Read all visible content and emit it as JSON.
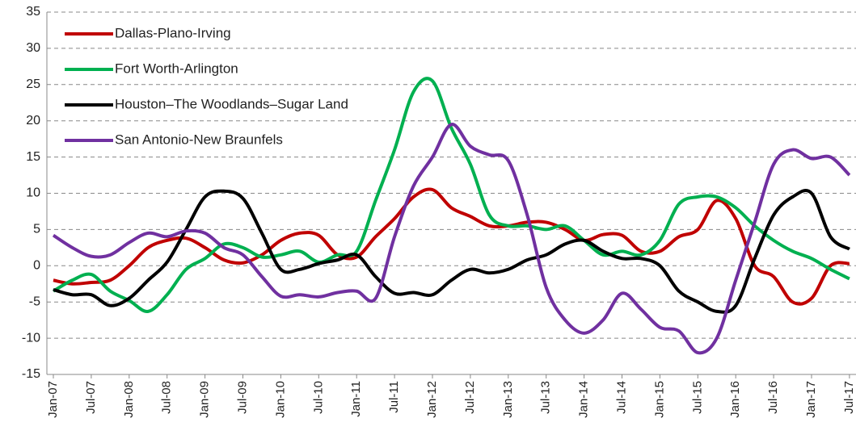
{
  "chart_data": {
    "type": "line",
    "categories": [
      "Jan-07",
      null,
      "Jul-07",
      null,
      "Jan-08",
      null,
      "Jul-08",
      null,
      "Jan-09",
      null,
      "Jul-09",
      null,
      "Jan-10",
      null,
      "Jul-10",
      null,
      "Jan-11",
      null,
      "Jul-11",
      null,
      "Jan-12",
      null,
      "Jul-12",
      null,
      "Jan-13",
      null,
      "Jul-13",
      null,
      "Jan-14",
      null,
      "Jul-14",
      null,
      "Jan-15",
      null,
      "Jul-15",
      null,
      "Jan-16",
      null,
      "Jul-16",
      null,
      "Jan-17",
      null,
      "Jul-17"
    ],
    "series": [
      {
        "name": "Dallas-Plano-Irving",
        "color": "#c00000",
        "values": [
          -2,
          -2.5,
          -2.3,
          -2,
          0,
          2.5,
          3.5,
          3.8,
          2.5,
          0.8,
          0.4,
          1.5,
          3.5,
          4.5,
          4.2,
          1.5,
          1.2,
          4,
          6.5,
          9.5,
          10.5,
          8,
          6.8,
          5.5,
          5.5,
          6,
          6,
          5,
          3.5,
          4.3,
          4.2,
          2,
          2,
          4,
          5,
          9,
          6.5,
          0,
          -1.5,
          -5,
          -4.5,
          0,
          0.3
        ]
      },
      {
        "name": "Fort Worth-Arlington",
        "color": "#00b050",
        "values": [
          -3.5,
          -2,
          -1.2,
          -3.5,
          -4.8,
          -6.3,
          -4,
          -0.5,
          1,
          3,
          2.5,
          1.2,
          1.5,
          2,
          0.5,
          1.5,
          2,
          9,
          16,
          24,
          25.5,
          19,
          14,
          7,
          5.5,
          5.5,
          5,
          5.5,
          3.5,
          1.5,
          2,
          1.5,
          3.5,
          8.5,
          9.5,
          9.5,
          8,
          5.5,
          3.5,
          2,
          1,
          -0.5,
          -1.8
        ]
      },
      {
        "name": "Houston–The Woodlands–Sugar Land",
        "color": "#000000",
        "values": [
          -3.3,
          -4,
          -4,
          -5.5,
          -4.5,
          -2,
          0.5,
          5,
          9.5,
          10.3,
          9.3,
          4.5,
          -0.5,
          -0.5,
          0.3,
          0.8,
          1.5,
          -1.5,
          -3.8,
          -3.7,
          -4,
          -2,
          -0.5,
          -1,
          -0.5,
          0.8,
          1.5,
          3,
          3.5,
          2,
          1,
          1,
          0,
          -3.5,
          -5,
          -6.3,
          -5.5,
          1,
          7,
          9.5,
          10,
          4,
          2.3
        ]
      },
      {
        "name": "San Antonio-New Braunfels",
        "color": "#7030a0",
        "values": [
          4.2,
          2.5,
          1.3,
          1.5,
          3.2,
          4.5,
          4,
          4.8,
          4.5,
          2.5,
          1.5,
          -1.5,
          -4.2,
          -4,
          -4.3,
          -3.7,
          -3.5,
          -4.5,
          4,
          11,
          15,
          19.5,
          16.5,
          15.3,
          14.5,
          7,
          -3,
          -7.5,
          -9.3,
          -7.5,
          -3.8,
          -6,
          -8.5,
          -9,
          -12,
          -10,
          -2,
          6,
          14,
          16,
          14.8,
          15,
          12.5
        ]
      }
    ],
    "ylim": [
      -15,
      35
    ],
    "yticks": [
      -15,
      -10,
      -5,
      0,
      5,
      10,
      15,
      20,
      25,
      30,
      35
    ],
    "grid": true,
    "legend": "upper left"
  }
}
